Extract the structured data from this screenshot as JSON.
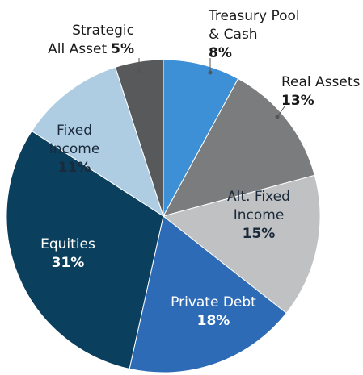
{
  "chart_data": {
    "type": "pie",
    "categories": [
      [
        "Treasury Pool",
        "& Cash"
      ],
      [
        "Real Assets"
      ],
      [
        "Alt. Fixed",
        "Income"
      ],
      [
        "Private Debt"
      ],
      [
        "Equities"
      ],
      [
        "Fixed",
        "Income"
      ],
      [
        "Strategic",
        "All Asset"
      ]
    ],
    "values": [
      8,
      13,
      15,
      18,
      31,
      11,
      5
    ],
    "value_labels": [
      "8%",
      "13%",
      "15%",
      "18%",
      "31%",
      "11%",
      "5%"
    ],
    "colors": [
      "#3d8fd6",
      "#7b7c7e",
      "#c0c1c3",
      "#2e6bb7",
      "#0b3f5e",
      "#aecde3",
      "#58595b"
    ]
  }
}
